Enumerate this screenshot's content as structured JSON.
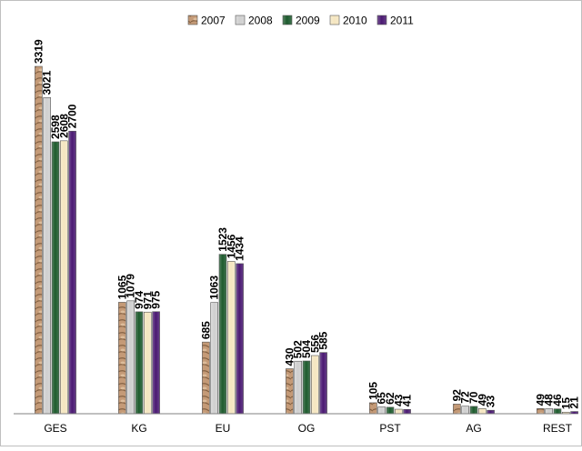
{
  "chart_data": {
    "type": "bar",
    "title": "",
    "xlabel": "",
    "ylabel": "",
    "ylim": [
      0,
      3319
    ],
    "grid": false,
    "legend_position": "top-center",
    "categories": [
      "GES",
      "KG",
      "EU",
      "OG",
      "PST",
      "AG",
      "REST"
    ],
    "series": [
      {
        "name": "2007",
        "color": "#c49a77",
        "values": [
          3319,
          1065,
          685,
          430,
          105,
          92,
          49
        ]
      },
      {
        "name": "2008",
        "color": "#d0d0d0",
        "values": [
          3021,
          1079,
          1063,
          502,
          65,
          72,
          48
        ]
      },
      {
        "name": "2009",
        "color": "#1e5b2e",
        "values": [
          2598,
          974,
          1523,
          504,
          62,
          70,
          46
        ]
      },
      {
        "name": "2010",
        "color": "#f5e6c0",
        "values": [
          2608,
          971,
          1456,
          556,
          43,
          49,
          15
        ]
      },
      {
        "name": "2011",
        "color": "#4b1a73",
        "values": [
          2700,
          975,
          1434,
          585,
          41,
          33,
          21
        ]
      }
    ]
  }
}
